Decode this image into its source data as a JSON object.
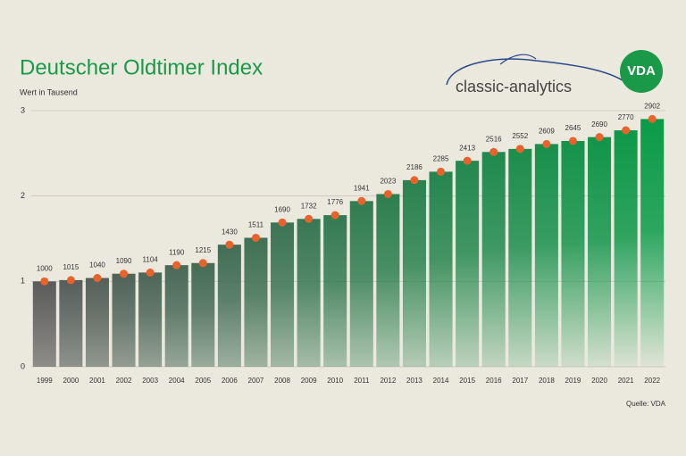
{
  "chart_data": {
    "type": "bar",
    "title": "Deutscher Oldtimer Index",
    "y_label": "Wert in Tausend",
    "source": "Quelle: VDA",
    "logo_text": "classic-analytics",
    "badge_text": "VDA",
    "categories": [
      "1999",
      "2000",
      "2001",
      "2002",
      "2003",
      "2004",
      "2005",
      "2006",
      "2007",
      "2008",
      "2009",
      "2010",
      "2011",
      "2012",
      "2013",
      "2014",
      "2015",
      "2016",
      "2017",
      "2018",
      "2019",
      "2020",
      "2021",
      "2022"
    ],
    "values": [
      1.0,
      1.015,
      1.04,
      1.09,
      1.104,
      1.19,
      1.215,
      1.43,
      1.511,
      1.69,
      1.732,
      1.776,
      1.941,
      2.023,
      2.186,
      2.285,
      2.413,
      2.516,
      2.552,
      2.609,
      2.645,
      2.69,
      2.77,
      2.902
    ],
    "value_labels": [
      "1000",
      "1015",
      "1040",
      "1090",
      "1104",
      "1190",
      "1215",
      "1430",
      "1511",
      "1690",
      "1732",
      "1776",
      "1941",
      "2023",
      "2186",
      "2285",
      "2413",
      "2516",
      "2552",
      "2609",
      "2645",
      "2690",
      "2770",
      "2902"
    ],
    "ylim": [
      0,
      3
    ],
    "yticks": [
      0,
      1,
      2,
      3
    ],
    "grid": true,
    "bar_color_from": "#5b5b5b",
    "bar_color_to": "#0a9b48",
    "marker_color": "#e8622c",
    "title_color": "#1a9a48"
  }
}
